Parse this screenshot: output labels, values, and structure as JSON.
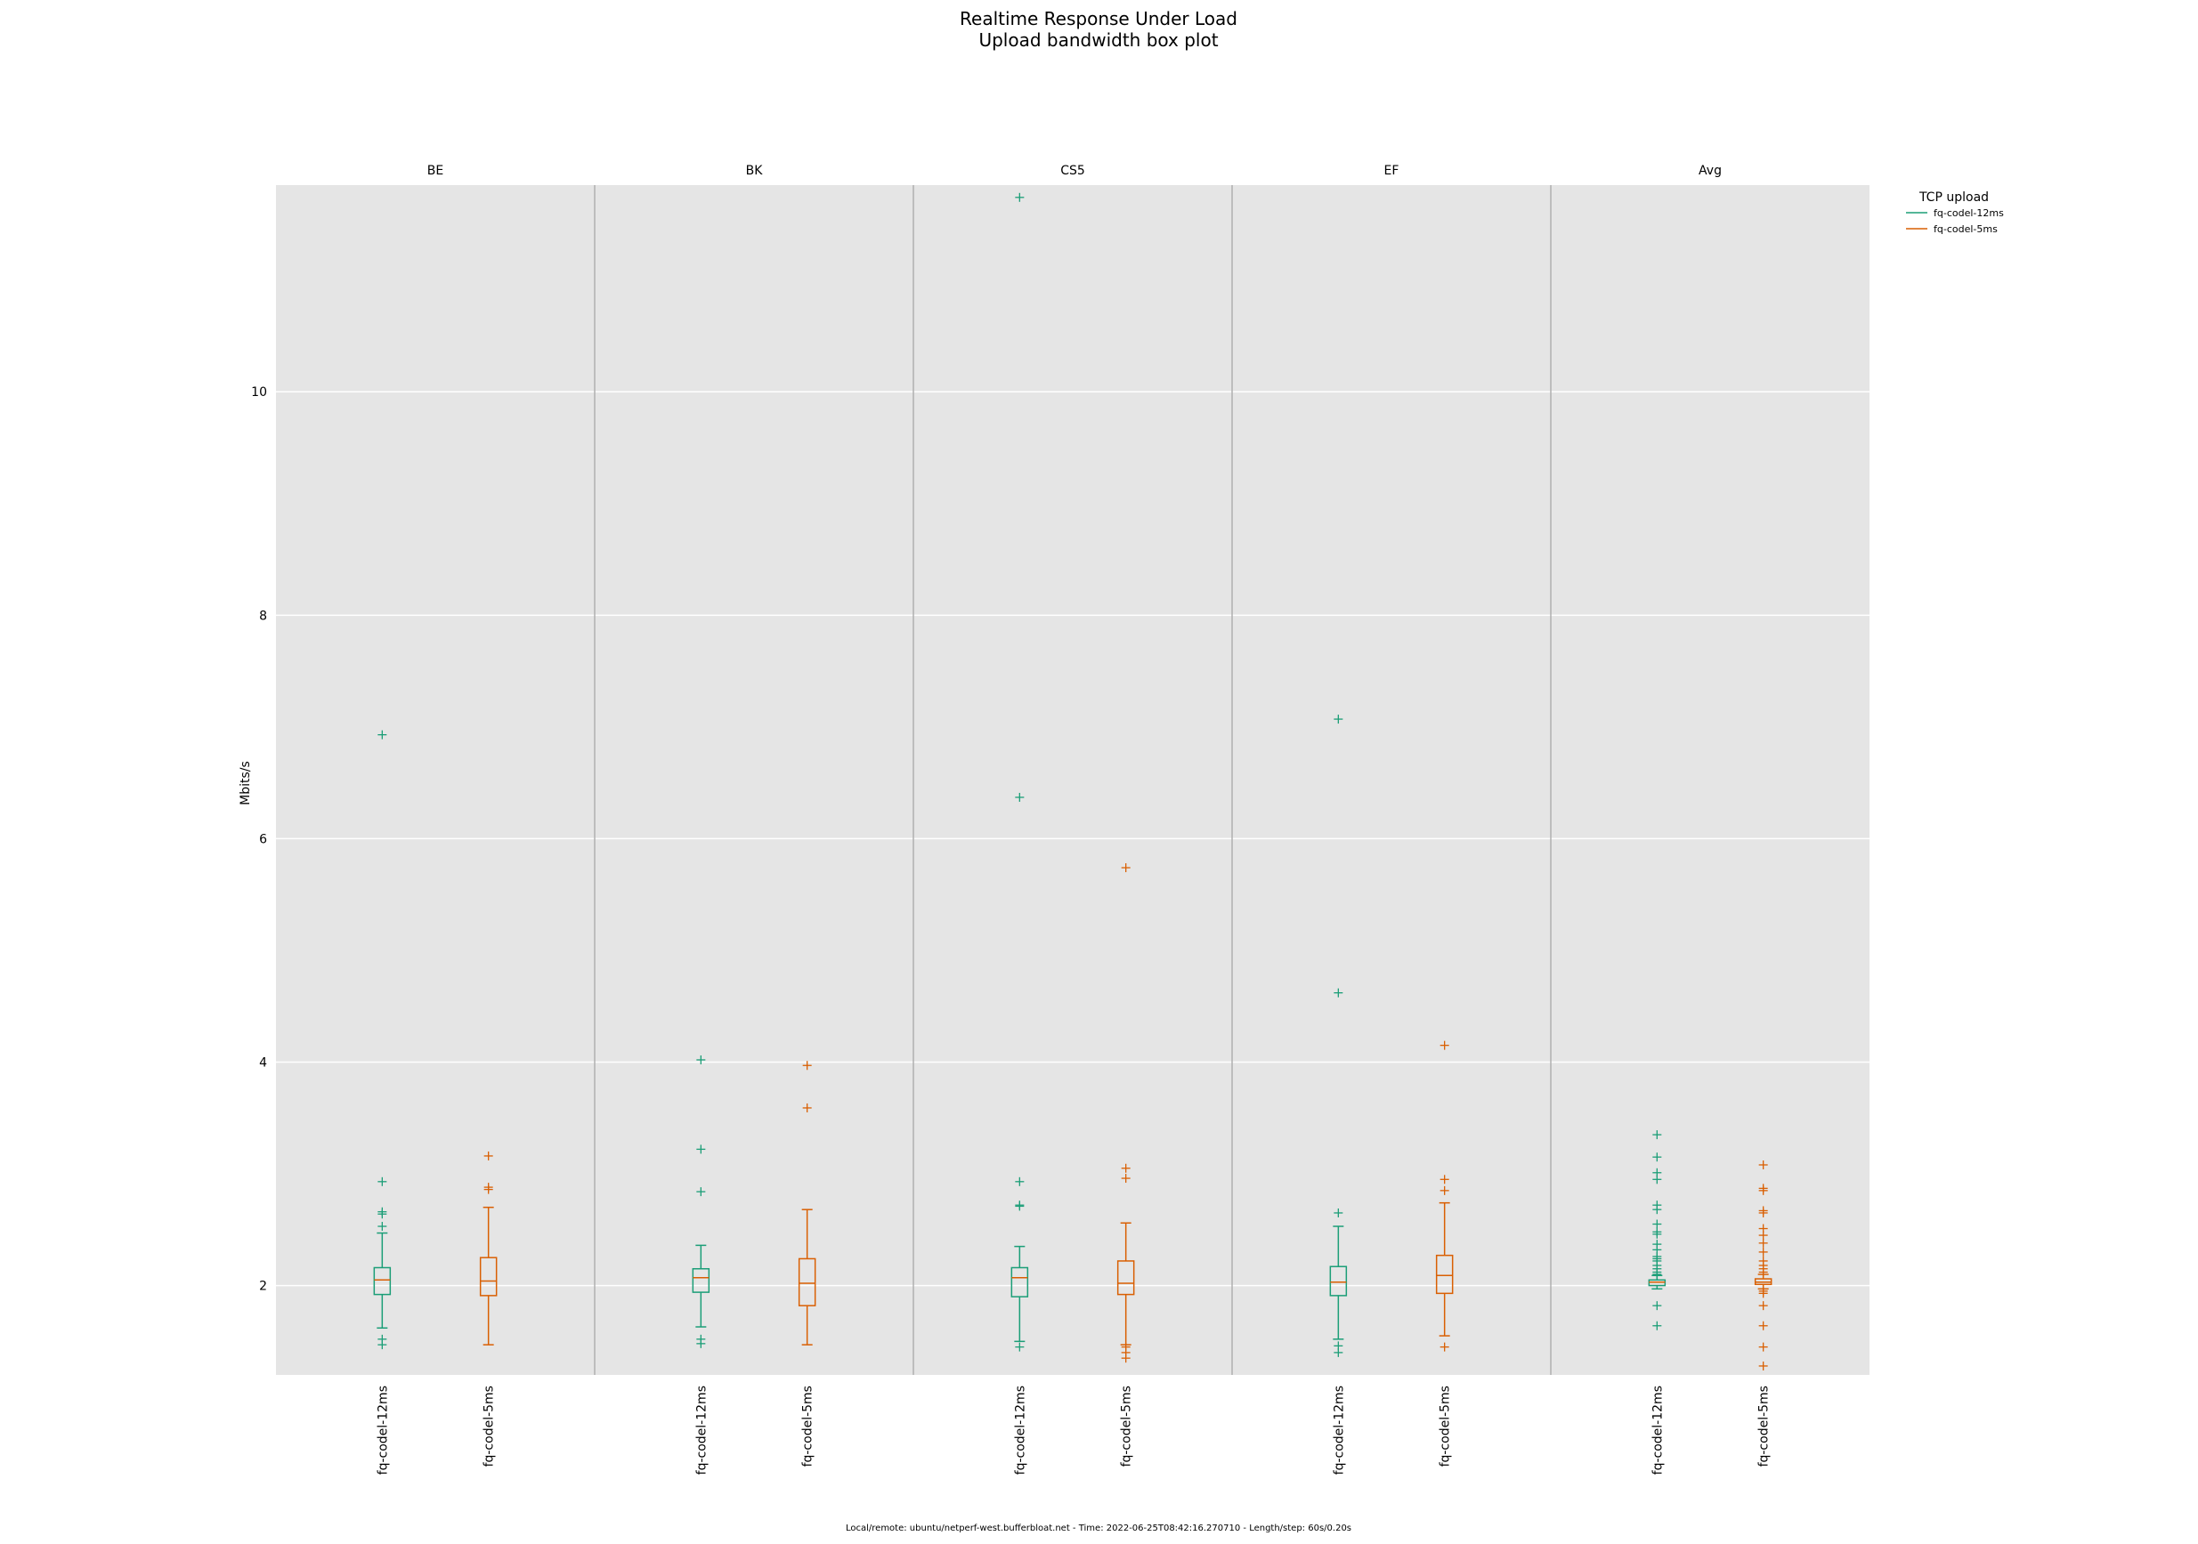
{
  "chart_data": {
    "type": "box",
    "title": "Realtime Response Under Load",
    "subtitle": "Upload bandwidth box plot",
    "ylabel": "Mbits/s",
    "ylim": [
      1.2,
      11.85
    ],
    "yticks": [
      2,
      4,
      6,
      8,
      10
    ],
    "grid": true,
    "legend_title": "TCP upload",
    "legend_position": "top-right, outside plot",
    "footer": "Local/remote: ubuntu/netperf-west.bufferbloat.net - Time: 2022-06-25T08:42:16.270710 - Length/step: 60s/0.20s",
    "series": [
      {
        "name": "fq-codel-12ms",
        "color": "#1b9e77"
      },
      {
        "name": "fq-codel-5ms",
        "color": "#d95f02"
      }
    ],
    "categories": [
      "fq-codel-12ms",
      "fq-codel-5ms"
    ],
    "panels": [
      {
        "name": "BE",
        "boxes": [
          {
            "series": "fq-codel-12ms",
            "whisker_low": 1.62,
            "q1": 1.92,
            "median": 2.05,
            "q3": 2.16,
            "whisker_high": 2.47,
            "outliers": [
              6.93,
              2.93,
              2.66,
              2.64,
              2.53,
              1.52,
              1.47
            ]
          },
          {
            "series": "fq-codel-5ms",
            "whisker_low": 1.47,
            "q1": 1.91,
            "median": 2.04,
            "q3": 2.25,
            "whisker_high": 2.7,
            "outliers": [
              3.16,
              2.88,
              2.86
            ]
          }
        ]
      },
      {
        "name": "BK",
        "boxes": [
          {
            "series": "fq-codel-12ms",
            "whisker_low": 1.63,
            "q1": 1.94,
            "median": 2.07,
            "q3": 2.15,
            "whisker_high": 2.36,
            "outliers": [
              4.02,
              3.22,
              2.84,
              1.52,
              1.48
            ]
          },
          {
            "series": "fq-codel-5ms",
            "whisker_low": 1.47,
            "q1": 1.82,
            "median": 2.02,
            "q3": 2.24,
            "whisker_high": 2.68,
            "outliers": [
              3.97,
              3.59
            ]
          }
        ]
      },
      {
        "name": "CS5",
        "boxes": [
          {
            "series": "fq-codel-12ms",
            "whisker_low": 1.5,
            "q1": 1.9,
            "median": 2.07,
            "q3": 2.16,
            "whisker_high": 2.35,
            "outliers": [
              11.74,
              6.37,
              2.93,
              2.72,
              2.71,
              1.45
            ]
          },
          {
            "series": "fq-codel-5ms",
            "whisker_low": 1.47,
            "q1": 1.92,
            "median": 2.02,
            "q3": 2.22,
            "whisker_high": 2.56,
            "outliers": [
              5.74,
              3.05,
              2.96,
              1.45,
              1.4,
              1.35
            ]
          }
        ]
      },
      {
        "name": "EF",
        "boxes": [
          {
            "series": "fq-codel-12ms",
            "whisker_low": 1.52,
            "q1": 1.91,
            "median": 2.03,
            "q3": 2.17,
            "whisker_high": 2.53,
            "outliers": [
              7.07,
              4.62,
              2.65,
              1.46,
              1.4
            ]
          },
          {
            "series": "fq-codel-5ms",
            "whisker_low": 1.55,
            "q1": 1.93,
            "median": 2.09,
            "q3": 2.27,
            "whisker_high": 2.74,
            "outliers": [
              4.15,
              2.95,
              2.85,
              1.45
            ]
          }
        ]
      },
      {
        "name": "Avg",
        "boxes": [
          {
            "series": "fq-codel-12ms",
            "whisker_low": 1.97,
            "q1": 2.0,
            "median": 2.03,
            "q3": 2.05,
            "whisker_high": 2.09,
            "outliers": [
              3.35,
              3.15,
              3.01,
              2.95,
              2.72,
              2.68,
              2.55,
              2.48,
              2.46,
              2.37,
              2.32,
              2.26,
              2.24,
              2.22,
              2.18,
              2.15,
              2.12,
              2.1,
              1.82,
              1.64
            ]
          },
          {
            "series": "fq-codel-5ms",
            "whisker_low": 1.97,
            "q1": 2.01,
            "median": 2.03,
            "q3": 2.06,
            "whisker_high": 2.1,
            "outliers": [
              3.08,
              2.87,
              2.85,
              2.67,
              2.65,
              2.51,
              2.45,
              2.38,
              2.3,
              2.22,
              2.18,
              2.15,
              2.12,
              1.95,
              1.93,
              1.82,
              1.64,
              1.45,
              1.28
            ]
          }
        ]
      }
    ]
  }
}
